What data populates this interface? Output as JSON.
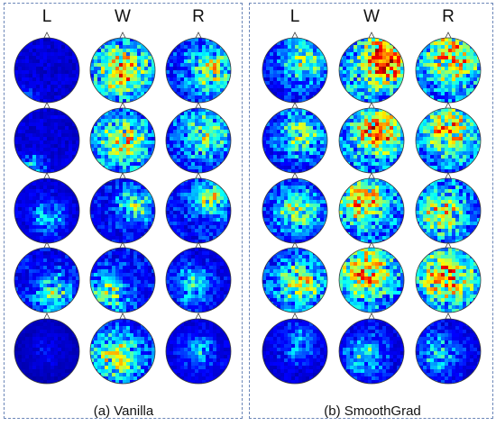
{
  "panels": [
    {
      "caption": "(a) Vanilla",
      "columns": [
        "L",
        "W",
        "R"
      ],
      "maps": [
        [
          {
            "mean": 0.15,
            "blobs": [
              [
                0.15,
                0.95,
                0.18
              ]
            ]
          },
          {
            "mean": 0.28,
            "blobs": [
              [
                0.5,
                0.5,
                0.4
              ]
            ]
          },
          {
            "mean": 0.24,
            "blobs": [
              [
                0.7,
                0.5,
                0.35
              ]
            ]
          }
        ],
        [
          {
            "mean": 0.15,
            "blobs": [
              [
                0.3,
                0.9,
                0.2
              ]
            ]
          },
          {
            "mean": 0.25,
            "blobs": [
              [
                0.5,
                0.5,
                0.4
              ]
            ]
          },
          {
            "mean": 0.22,
            "blobs": [
              [
                0.6,
                0.4,
                0.4
              ]
            ]
          }
        ],
        [
          {
            "mean": 0.15,
            "blobs": [
              [
                0.5,
                0.6,
                0.3
              ]
            ]
          },
          {
            "mean": 0.2,
            "blobs": [
              [
                0.7,
                0.4,
                0.3
              ]
            ]
          },
          {
            "mean": 0.22,
            "blobs": [
              [
                0.7,
                0.3,
                0.3
              ]
            ]
          }
        ],
        [
          {
            "mean": 0.2,
            "blobs": [
              [
                0.6,
                0.7,
                0.3
              ]
            ]
          },
          {
            "mean": 0.22,
            "blobs": [
              [
                0.3,
                0.7,
                0.3
              ]
            ]
          },
          {
            "mean": 0.18,
            "blobs": [
              [
                0.4,
                0.6,
                0.3
              ]
            ]
          }
        ],
        [
          {
            "mean": 0.08,
            "blobs": [
              [
                0.5,
                0.5,
                0.3
              ]
            ]
          },
          {
            "mean": 0.25,
            "blobs": [
              [
                0.4,
                0.6,
                0.35
              ]
            ]
          },
          {
            "mean": 0.15,
            "blobs": [
              [
                0.5,
                0.5,
                0.3
              ]
            ]
          }
        ]
      ]
    },
    {
      "caption": "(b) SmoothGrad",
      "columns": [
        "L",
        "W",
        "R"
      ],
      "maps": [
        [
          {
            "mean": 0.22,
            "blobs": [
              [
                0.65,
                0.35,
                0.35
              ]
            ]
          },
          {
            "mean": 0.35,
            "blobs": [
              [
                0.7,
                0.35,
                0.35
              ]
            ]
          },
          {
            "mean": 0.3,
            "blobs": [
              [
                0.6,
                0.3,
                0.4
              ]
            ]
          }
        ],
        [
          {
            "mean": 0.22,
            "blobs": [
              [
                0.6,
                0.4,
                0.35
              ]
            ]
          },
          {
            "mean": 0.32,
            "blobs": [
              [
                0.6,
                0.35,
                0.35
              ]
            ]
          },
          {
            "mean": 0.28,
            "blobs": [
              [
                0.5,
                0.35,
                0.4
              ]
            ]
          }
        ],
        [
          {
            "mean": 0.22,
            "blobs": [
              [
                0.55,
                0.5,
                0.35
              ]
            ]
          },
          {
            "mean": 0.3,
            "blobs": [
              [
                0.35,
                0.35,
                0.35
              ]
            ]
          },
          {
            "mean": 0.25,
            "blobs": [
              [
                0.4,
                0.5,
                0.4
              ]
            ]
          }
        ],
        [
          {
            "mean": 0.25,
            "blobs": [
              [
                0.6,
                0.55,
                0.35
              ]
            ]
          },
          {
            "mean": 0.3,
            "blobs": [
              [
                0.4,
                0.35,
                0.4
              ]
            ]
          },
          {
            "mean": 0.3,
            "blobs": [
              [
                0.5,
                0.45,
                0.4
              ]
            ]
          }
        ],
        [
          {
            "mean": 0.15,
            "blobs": [
              [
                0.55,
                0.4,
                0.3
              ]
            ]
          },
          {
            "mean": 0.18,
            "blobs": [
              [
                0.4,
                0.55,
                0.3
              ]
            ]
          },
          {
            "mean": 0.18,
            "blobs": [
              [
                0.35,
                0.55,
                0.3
              ]
            ]
          }
        ]
      ]
    }
  ],
  "colormap": [
    "#00008f",
    "#0000ff",
    "#00ffff",
    "#ffff00",
    "#ff0000",
    "#800000"
  ]
}
